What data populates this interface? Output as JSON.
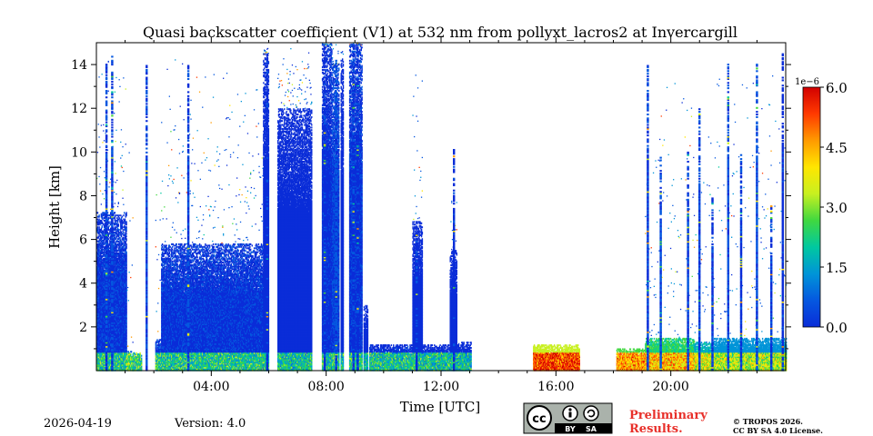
{
  "chart_data": {
    "type": "heatmap",
    "title": "Quasi backscatter coefficient (V1) at 532 nm from pollyxt_lacros2 at Invercargill",
    "xlabel": "Time [UTC]",
    "ylabel": "Height [km]",
    "xlim_hours": [
      0,
      24
    ],
    "ylim_km": [
      0,
      15
    ],
    "xticks": [
      {
        "value": 4,
        "label": "04:00"
      },
      {
        "value": 8,
        "label": "08:00"
      },
      {
        "value": 12,
        "label": "12:00"
      },
      {
        "value": 16,
        "label": "16:00"
      },
      {
        "value": 20,
        "label": "20:00"
      }
    ],
    "yticks": [
      {
        "value": 2,
        "label": "2"
      },
      {
        "value": 4,
        "label": "4"
      },
      {
        "value": 6,
        "label": "6"
      },
      {
        "value": 8,
        "label": "8"
      },
      {
        "value": 10,
        "label": "10"
      },
      {
        "value": 12,
        "label": "12"
      },
      {
        "value": 14,
        "label": "14"
      }
    ],
    "colorbar": {
      "min": 0.0,
      "max": 6.0,
      "scale_label": "1e−6",
      "ticks": [
        {
          "value": 0.0,
          "label": "0.0"
        },
        {
          "value": 1.5,
          "label": "1.5"
        },
        {
          "value": 3.0,
          "label": "3.0"
        },
        {
          "value": 4.5,
          "label": "4.5"
        },
        {
          "value": 6.0,
          "label": "6.0"
        }
      ],
      "colormap": [
        "#0a2dd8",
        "#0558e0",
        "#0094d8",
        "#00c8a0",
        "#40d840",
        "#c8f020",
        "#ffe600",
        "#ff9a00",
        "#ff3a00",
        "#d20000"
      ]
    },
    "profile_segments": [
      {
        "t0": 0.0,
        "t1": 1.05,
        "top": 7.2,
        "scatter_top": 14.6,
        "intensity": 0.08
      },
      {
        "t0": 1.05,
        "t1": 1.25,
        "top": 0.9,
        "scatter_top": 13.0,
        "intensity": 0.15
      },
      {
        "t0": 1.25,
        "t1": 1.55,
        "top": 0.8,
        "scatter_top": 0,
        "intensity": 0.1
      },
      {
        "t0": 2.05,
        "t1": 2.25,
        "top": 1.4,
        "scatter_top": 10.5,
        "intensity": 0.1
      },
      {
        "t0": 2.25,
        "t1": 5.8,
        "top": 5.8,
        "scatter_top": 14.8,
        "intensity": 0.08
      },
      {
        "t0": 5.8,
        "t1": 6.0,
        "top": 14.5,
        "scatter_top": 14.8,
        "intensity": 0.06
      },
      {
        "t0": 6.3,
        "t1": 7.5,
        "top": 12.0,
        "scatter_top": 14.9,
        "intensity": 0.06
      },
      {
        "t0": 7.85,
        "t1": 8.2,
        "top": 14.9,
        "scatter_top": 15.0,
        "intensity": 0.07
      },
      {
        "t0": 8.2,
        "t1": 8.45,
        "top": 14.0,
        "scatter_top": 15.0,
        "intensity": 0.1
      },
      {
        "t0": 8.5,
        "t1": 8.6,
        "top": 14.5,
        "scatter_top": 15.0,
        "intensity": 0.05
      },
      {
        "t0": 8.8,
        "t1": 9.25,
        "top": 14.9,
        "scatter_top": 15.0,
        "intensity": 0.08
      },
      {
        "t0": 9.3,
        "t1": 9.45,
        "top": 3.0,
        "scatter_top": 0,
        "intensity": 0.05
      },
      {
        "t0": 9.5,
        "t1": 11.0,
        "top": 1.2,
        "scatter_top": 0,
        "intensity": 0.07
      },
      {
        "t0": 11.0,
        "t1": 11.35,
        "top": 6.8,
        "scatter_top": 14.0,
        "intensity": 0.06
      },
      {
        "t0": 11.35,
        "t1": 12.3,
        "top": 1.2,
        "scatter_top": 0,
        "intensity": 0.06
      },
      {
        "t0": 12.3,
        "t1": 12.55,
        "top": 5.5,
        "scatter_top": 10.5,
        "intensity": 0.06
      },
      {
        "t0": 12.55,
        "t1": 13.05,
        "top": 1.3,
        "scatter_top": 0,
        "intensity": 0.05
      },
      {
        "t0": 15.2,
        "t1": 16.8,
        "top": 1.2,
        "scatter_top": 0,
        "intensity": 0.55
      },
      {
        "t0": 18.1,
        "t1": 19.1,
        "top": 1.0,
        "scatter_top": 0,
        "intensity": 0.45
      },
      {
        "t0": 19.1,
        "t1": 20.8,
        "top": 1.5,
        "scatter_top": 14.0,
        "intensity": 0.4
      },
      {
        "t0": 20.8,
        "t1": 21.5,
        "top": 1.3,
        "scatter_top": 12.0,
        "intensity": 0.3
      },
      {
        "t0": 21.5,
        "t1": 24.0,
        "top": 1.5,
        "scatter_top": 14.5,
        "intensity": 0.25
      }
    ],
    "columns": [
      {
        "t": 0.35,
        "top": 14.0,
        "intensity": 0.1
      },
      {
        "t": 0.55,
        "top": 14.5,
        "intensity": 0.1
      },
      {
        "t": 1.75,
        "top": 14.0,
        "intensity": 0.1
      },
      {
        "t": 3.2,
        "top": 14.0,
        "intensity": 0.1
      },
      {
        "t": 5.95,
        "top": 14.6,
        "intensity": 0.06
      },
      {
        "t": 7.95,
        "top": 14.8,
        "intensity": 0.07
      },
      {
        "t": 8.35,
        "top": 14.2,
        "intensity": 0.12
      },
      {
        "t": 8.95,
        "top": 14.8,
        "intensity": 0.08
      },
      {
        "t": 9.1,
        "top": 14.8,
        "intensity": 0.07
      },
      {
        "t": 11.15,
        "top": 6.8,
        "intensity": 0.06
      },
      {
        "t": 12.45,
        "top": 10.2,
        "intensity": 0.06
      },
      {
        "t": 19.2,
        "top": 14.0,
        "intensity": 0.1
      },
      {
        "t": 19.65,
        "top": 9.8,
        "intensity": 0.12
      },
      {
        "t": 20.6,
        "top": 10.0,
        "intensity": 0.1
      },
      {
        "t": 21.0,
        "top": 12.0,
        "intensity": 0.1
      },
      {
        "t": 21.45,
        "top": 8.0,
        "intensity": 0.08
      },
      {
        "t": 22.0,
        "top": 14.0,
        "intensity": 0.12
      },
      {
        "t": 22.45,
        "top": 10.0,
        "intensity": 0.08
      },
      {
        "t": 23.0,
        "top": 14.0,
        "intensity": 0.12
      },
      {
        "t": 23.5,
        "top": 7.5,
        "intensity": 0.08
      },
      {
        "t": 23.9,
        "top": 14.5,
        "intensity": 0.06
      }
    ]
  },
  "footer": {
    "date": "2026-04-19",
    "version": "Version: 4.0",
    "license_badge": {
      "by": "BY",
      "sa": "SA"
    },
    "preliminary_line1": "Preliminary",
    "preliminary_line2": "Results.",
    "copyright_line1": "© TROPOS 2026.",
    "copyright_line2": "CC BY SA 4.0 License."
  }
}
